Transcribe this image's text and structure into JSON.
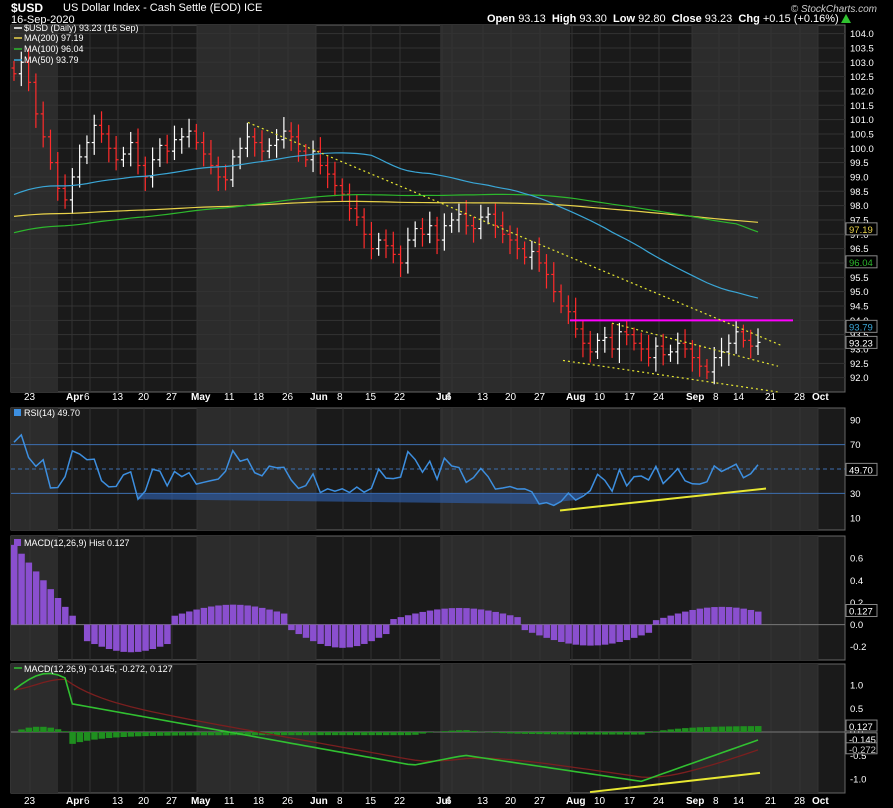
{
  "header": {
    "symbol": "$USD",
    "name": "US Dollar Index - Cash Settle (EOD)  ICE",
    "date": "16-Sep-2020",
    "credit": "© StockCharts.com",
    "open_label": "Open",
    "open": "93.13",
    "high_label": "High",
    "high": "93.30",
    "low_label": "Low",
    "low": "92.80",
    "close_label": "Close",
    "close": "93.23",
    "chg_label": "Chg",
    "chg": "+0.15 (+0.16%)"
  },
  "legend": {
    "price": "$USD (Daily) 93.23 (16 Sep)",
    "ma200": "MA(200) 97.19",
    "ma100": "MA(100) 96.04",
    "ma50": "MA(50) 93.79",
    "rsi": "RSI(14) 49.70",
    "hist": "MACD(12,26,9) Hist 0.127",
    "macd": "MACD(12,26,9) -0.145, -0.272, 0.127"
  },
  "colors": {
    "up": "#ffffff",
    "down": "#ff2b2b",
    "ma200": "#e8d24a",
    "ma100": "#2db82d",
    "ma50": "#3aa6d6",
    "resistance": "#ff00ff",
    "trend": "#e8e832",
    "rsi": "#3d8fe0",
    "hist": "#8a4fcf",
    "macd": "#31c031",
    "signal": "#7a1f1f",
    "macd_hist": "#1f8f1f"
  },
  "chart_data": [
    {
      "type": "candlestick",
      "title": "$USD US Dollar Index - Cash Settle (EOD)",
      "ylim": [
        91.5,
        104.3
      ],
      "y_ticks": [
        "104.0",
        "103.5",
        "103.0",
        "102.5",
        "102.0",
        "101.5",
        "101.0",
        "100.5",
        "100.0",
        "99.5",
        "99.0",
        "98.5",
        "98.0",
        "97.5",
        "97.0",
        "96.5",
        "96.0",
        "95.5",
        "95.0",
        "94.5",
        "94.0",
        "93.5",
        "93.0",
        "92.5",
        "92.0"
      ],
      "x_labels": [
        "23",
        "Apr",
        "6",
        "13",
        "20",
        "27",
        "May",
        "11",
        "18",
        "26",
        "Jun",
        "8",
        "15",
        "22",
        "Jul",
        "6",
        "13",
        "20",
        "27",
        "Aug",
        "10",
        "17",
        "24",
        "Sep",
        "8",
        "14",
        "21",
        "28",
        "Oct"
      ],
      "close_series": [
        102.6,
        103.0,
        102.3,
        101.2,
        100.4,
        99.5,
        98.6,
        98.2,
        99.0,
        99.7,
        100.2,
        100.8,
        100.5,
        100.0,
        99.6,
        99.8,
        100.2,
        99.4,
        99.0,
        99.6,
        100.1,
        99.9,
        100.3,
        100.4,
        100.6,
        100.2,
        99.8,
        99.4,
        99.0,
        98.9,
        99.7,
        100.0,
        100.4,
        100.2,
        99.9,
        100.1,
        100.3,
        100.6,
        100.4,
        99.9,
        99.6,
        99.9,
        99.4,
        99.1,
        98.7,
        98.4,
        97.9,
        97.6,
        97.0,
        96.5,
        96.8,
        96.6,
        96.3,
        96.0,
        96.8,
        97.2,
        97.0,
        97.3,
        96.8,
        97.3,
        97.5,
        97.7,
        97.3,
        97.2,
        97.6,
        97.7,
        97.3,
        97.0,
        96.8,
        96.5,
        96.2,
        96.4,
        96.0,
        95.6,
        95.0,
        94.5,
        94.3,
        93.7,
        93.2,
        92.9,
        93.3,
        93.4,
        93.0,
        93.6,
        93.5,
        93.2,
        93.0,
        92.7,
        93.1,
        92.8,
        92.9,
        93.2,
        93.0,
        92.7,
        92.4,
        92.2,
        92.7,
        92.9,
        93.2,
        93.6,
        93.3,
        93.1,
        93.23
      ],
      "annotations": {
        "ma200_last": "97.19",
        "ma100_last": "96.04",
        "ma50_last": "93.79",
        "price_last": "93.23",
        "resistance": 94.0
      }
    },
    {
      "type": "line",
      "title": "RSI(14)",
      "ylim": [
        0,
        100
      ],
      "y_ticks": [
        "90",
        "70",
        "50",
        "30",
        "10"
      ],
      "levels": [
        70,
        30
      ],
      "last": "49.70"
    },
    {
      "type": "bar",
      "title": "MACD(12,26,9) Hist",
      "ylim": [
        -0.32,
        0.8
      ],
      "y_ticks": [
        "0.6",
        "0.4",
        "0.2",
        "0.0",
        "-0.2"
      ],
      "last": "0.127"
    },
    {
      "type": "line",
      "title": "MACD(12,26,9)",
      "ylim": [
        -1.3,
        1.45
      ],
      "y_ticks": [
        "1.0",
        "0.5",
        "0.0",
        "-0.5",
        "-1.0"
      ],
      "values_last": [
        "0.127",
        "-0.145",
        "-0.272"
      ]
    }
  ]
}
